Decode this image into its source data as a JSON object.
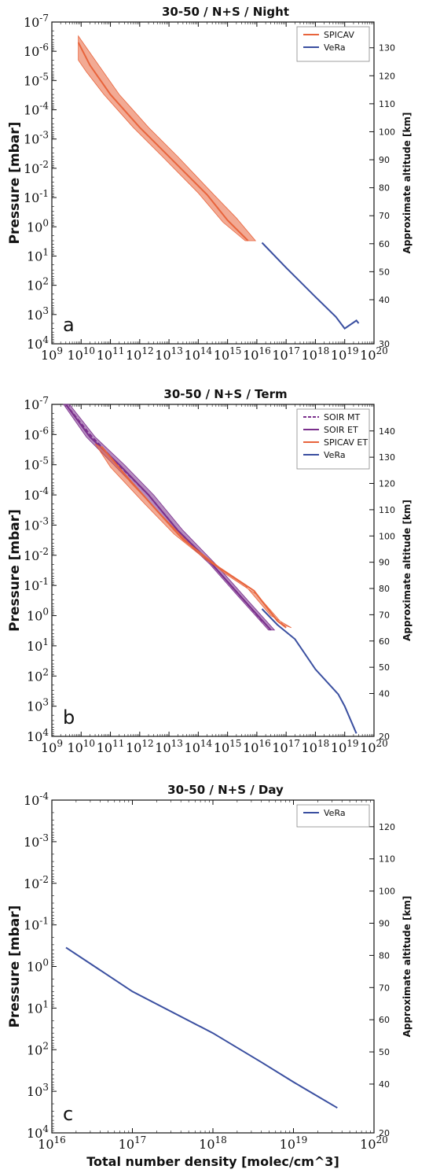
{
  "chart_data": [
    {
      "type": "line",
      "panel": "a",
      "title": "30-50 / N+S / Night",
      "xlabel": "",
      "ylabel": "Pressure [mbar]",
      "ylabel_right": "Approximate altitude [km]",
      "xscale": "log",
      "yscale": "log",
      "xlim": [
        1000000000.0,
        1e+20
      ],
      "ylim": [
        10000.0,
        1e-07
      ],
      "y_inverted": true,
      "x_tick_labels": [
        "10^9",
        "10^10",
        "10^11",
        "10^12",
        "10^13",
        "10^14",
        "10^15",
        "10^16",
        "10^17",
        "10^18",
        "10^19",
        "10^20"
      ],
      "y_tick_labels": [
        "10^-7",
        "10^-6",
        "10^-5",
        "10^-4",
        "10^-3",
        "10^-2",
        "10^-1",
        "10^0",
        "10^1",
        "10^2",
        "10^3",
        "10^4"
      ],
      "right_ticks": [
        "130",
        "120",
        "110",
        "100",
        "90",
        "80",
        "70",
        "60",
        "50",
        "40",
        "30"
      ],
      "legend_position": "top-right",
      "series": [
        {
          "name": "SPICAV",
          "color": "#e8643c",
          "band": true,
          "points": [
            [
              8000000000.0,
              5e-07
            ],
            [
              20000000000.0,
              3e-06
            ],
            [
              100000000000.0,
              3e-05
            ],
            [
              1000000000000.0,
              0.0004
            ],
            [
              10000000000000.0,
              0.004
            ],
            [
              200000000000000.0,
              0.08
            ],
            [
              1000000000000000.0,
              0.6
            ],
            [
              5000000000000000.0,
              3
            ]
          ],
          "band_low": [
            [
              8000000000.0,
              3e-07
            ],
            [
              30000000000.0,
              2e-06
            ],
            [
              200000000000.0,
              3e-05
            ],
            [
              2000000000000.0,
              0.0004
            ],
            [
              20000000000000.0,
              0.004
            ],
            [
              300000000000000.0,
              0.07
            ],
            [
              2000000000000000.0,
              0.5
            ],
            [
              9000000000000000.0,
              3
            ]
          ],
          "band_high": [
            [
              8000000000.0,
              2e-06
            ],
            [
              15000000000.0,
              5e-06
            ],
            [
              60000000000.0,
              3e-05
            ],
            [
              600000000000.0,
              0.0004
            ],
            [
              6000000000000.0,
              0.004
            ],
            [
              100000000000000.0,
              0.07
            ],
            [
              700000000000000.0,
              0.7
            ],
            [
              4000000000000000.0,
              3
            ]
          ]
        },
        {
          "name": "VeRa",
          "color": "#3a4fa0",
          "points": [
            [
              1.5e+16,
              3.5
            ],
            [
              1e+17,
              25
            ],
            [
              1e+18,
              250
            ],
            [
              5e+18,
              1200
            ],
            [
              1e+19,
              3000
            ],
            [
              2.5e+19,
              1600
            ],
            [
              3e+19,
              2000
            ]
          ]
        }
      ]
    },
    {
      "type": "line",
      "panel": "b",
      "title": "30-50 / N+S / Term",
      "xlabel": "",
      "ylabel": "Pressure [mbar]",
      "ylabel_right": "Approximate altitude [km]",
      "xscale": "log",
      "yscale": "log",
      "xlim": [
        1000000000.0,
        1e+20
      ],
      "ylim": [
        10000.0,
        1e-07
      ],
      "y_inverted": true,
      "x_tick_labels": [
        "10^9",
        "10^10",
        "10^11",
        "10^12",
        "10^13",
        "10^14",
        "10^15",
        "10^16",
        "10^17",
        "10^18",
        "10^19",
        "10^20"
      ],
      "y_tick_labels": [
        "10^-7",
        "10^-6",
        "10^-5",
        "10^-4",
        "10^-3",
        "10^-2",
        "10^-1",
        "10^0",
        "10^1",
        "10^2",
        "10^3",
        "10^4"
      ],
      "right_ticks": [
        "140",
        "130",
        "120",
        "110",
        "100",
        "90",
        "80",
        "70",
        "60",
        "50",
        "40",
        "20"
      ],
      "legend_position": "top-right",
      "series": [
        {
          "name": "SOIR MT",
          "color": "#7a2f8c",
          "dashed": true,
          "points": [
            [
              3000000000.0,
              1e-07
            ],
            [
              20000000000.0,
              1e-06
            ],
            [
              150000000000.0,
              8e-06
            ],
            [
              2000000000000.0,
              0.0001
            ],
            [
              20000000000000.0,
              0.0015
            ],
            [
              300000000000000.0,
              0.02
            ],
            [
              3000000000000000.0,
              0.25
            ],
            [
              1.5e+16,
              1.5
            ]
          ]
        },
        {
          "name": "SOIR ET",
          "color": "#7a2f8c",
          "band": true,
          "points": [
            [
              3000000000.0,
              1e-07
            ],
            [
              20000000000.0,
              1.2e-06
            ],
            [
              200000000000.0,
              1e-05
            ],
            [
              2000000000000.0,
              0.0001
            ],
            [
              20000000000000.0,
              0.0015
            ],
            [
              300000000000000.0,
              0.02
            ],
            [
              3000000000000000.0,
              0.25
            ],
            [
              3e+16,
              3
            ]
          ],
          "band_low": [
            [
              4000000000.0,
              1e-07
            ],
            [
              30000000000.0,
              1.2e-06
            ],
            [
              300000000000.0,
              1e-05
            ],
            [
              3000000000000.0,
              0.0001
            ],
            [
              30000000000000.0,
              0.0015
            ],
            [
              400000000000000.0,
              0.02
            ],
            [
              4000000000000000.0,
              0.25
            ],
            [
              4e+16,
              3
            ]
          ],
          "band_high": [
            [
              2500000000.0,
              1e-07
            ],
            [
              15000000000.0,
              1.2e-06
            ],
            [
              130000000000.0,
              1e-05
            ],
            [
              1300000000000.0,
              0.0001
            ],
            [
              15000000000000.0,
              0.0015
            ],
            [
              250000000000000.0,
              0.02
            ],
            [
              2500000000000000.0,
              0.25
            ],
            [
              2.5e+16,
              3
            ]
          ]
        },
        {
          "name": "SPICAV ET",
          "color": "#e8643c",
          "band": true,
          "points": [
            [
              50000000000.0,
              2.5e-06
            ],
            [
              300000000000.0,
              2e-05
            ],
            [
              3000000000000.0,
              0.00025
            ],
            [
              30000000000000.0,
              0.003
            ],
            [
              500000000000000.0,
              0.025
            ],
            [
              8000000000000000.0,
              0.15
            ],
            [
              5e+16,
              1.5
            ],
            [
              1e+17,
              2.5
            ]
          ],
          "band_low": [
            [
              30000000000.0,
              2e-06
            ],
            [
              100000000000.0,
              1.2e-05
            ],
            [
              1500000000000.0,
              0.0002
            ],
            [
              15000000000000.0,
              0.002
            ],
            [
              200000000000000.0,
              0.015
            ],
            [
              4000000000000000.0,
              0.1
            ],
            [
              3e+16,
              1
            ],
            [
              1.5e+17,
              2.5
            ]
          ],
          "band_high": [
            [
              60000000000.0,
              3e-06
            ],
            [
              500000000000.0,
              4e-05
            ],
            [
              6000000000000.0,
              0.0005
            ],
            [
              60000000000000.0,
              0.005
            ],
            [
              800000000000000.0,
              0.04
            ],
            [
              1e+16,
              0.2
            ],
            [
              8e+16,
              2
            ],
            [
              1.5e+17,
              2.5
            ]
          ]
        },
        {
          "name": "VeRa",
          "color": "#3a4fa0",
          "points": [
            [
              1.5e+16,
              0.6
            ],
            [
              5e+16,
              2
            ],
            [
              2e+17,
              6
            ],
            [
              1e+18,
              60
            ],
            [
              6e+18,
              400
            ],
            [
              1e+19,
              1000
            ],
            [
              2.5e+19,
              8000
            ]
          ]
        }
      ]
    },
    {
      "type": "line",
      "panel": "c",
      "title": "30-50 / N+S / Day",
      "xlabel": "Total number density [molec/cm^3]",
      "ylabel": "Pressure [mbar]",
      "ylabel_right": "Approximate altitude [km]",
      "xscale": "log",
      "yscale": "log",
      "xlim": [
        1e+16,
        1e+20
      ],
      "ylim": [
        10000.0,
        0.0001
      ],
      "y_inverted": true,
      "x_tick_labels": [
        "10^16",
        "10^17",
        "10^18",
        "10^19",
        "10^20"
      ],
      "y_tick_labels": [
        "10^-4",
        "10^-3",
        "10^-2",
        "10^-1",
        "10^0",
        "10^1",
        "10^2",
        "10^3",
        "10^4"
      ],
      "right_ticks": [
        "120",
        "110",
        "100",
        "90",
        "80",
        "70",
        "60",
        "50",
        "40",
        "20"
      ],
      "legend_position": "top-right",
      "series": [
        {
          "name": "VeRa",
          "color": "#3a4fa0",
          "points": [
            [
              1.5e+16,
              0.35
            ],
            [
              1e+17,
              4
            ],
            [
              1e+18,
              40
            ],
            [
              4e+18,
              200
            ],
            [
              1e+19,
              600
            ],
            [
              3.5e+19,
              2500
            ]
          ]
        }
      ]
    }
  ],
  "panel_letters": [
    "a",
    "b",
    "c"
  ]
}
